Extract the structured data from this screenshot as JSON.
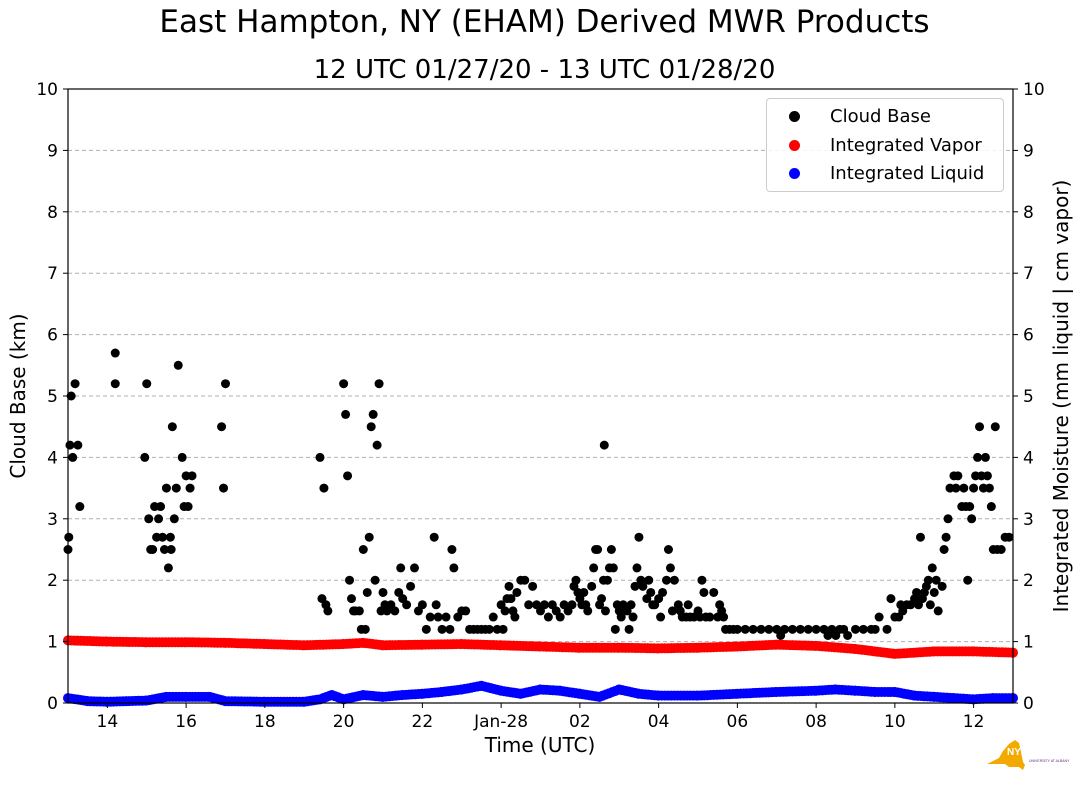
{
  "title": "East Hampton, NY (EHAM) Derived MWR Products",
  "subtitle": "12 UTC 01/27/20 - 13 UTC 01/28/20",
  "colors": {
    "cloud_base": "#000000",
    "vapor": "#ff0000",
    "liquid": "#0000ff",
    "grid": "#b0b0b0",
    "logo_state": "#f2a900",
    "logo_text": "#5b2d83"
  },
  "legend": [
    {
      "label": "Cloud Base",
      "color": "#000000"
    },
    {
      "label": "Integrated Vapor",
      "color": "#ff0000"
    },
    {
      "label": "Integrated Liquid",
      "color": "#0000ff"
    }
  ],
  "logo": {
    "name": "NYS Mesonet",
    "text": "NYS Mesonet"
  },
  "chart_data": {
    "type": "scatter",
    "title": "East Hampton, NY (EHAM) Derived MWR Products",
    "subtitle": "12 UTC 01/27/20 - 13 UTC 01/28/20",
    "xlabel": "Time (UTC)",
    "ylabel_left": "Cloud Base (km)",
    "ylabel_right": "Integrated Moisture (mm liquid | cm vapor)",
    "x_unit": "hours since 12 UTC 01/27/20",
    "xlim": [
      1,
      25
    ],
    "ylim": [
      0,
      10
    ],
    "yticks": [
      0,
      1,
      2,
      3,
      4,
      5,
      6,
      7,
      8,
      9,
      10
    ],
    "xticks": [
      {
        "x": 2,
        "label": "14"
      },
      {
        "x": 4,
        "label": "16"
      },
      {
        "x": 6,
        "label": "18"
      },
      {
        "x": 8,
        "label": "20"
      },
      {
        "x": 10,
        "label": "22"
      },
      {
        "x": 12,
        "label": "Jan-28"
      },
      {
        "x": 14,
        "label": "02"
      },
      {
        "x": 16,
        "label": "04"
      },
      {
        "x": 18,
        "label": "06"
      },
      {
        "x": 20,
        "label": "08"
      },
      {
        "x": 22,
        "label": "10"
      },
      {
        "x": 24,
        "label": "12"
      }
    ],
    "grid": "horizontal dashed",
    "legend_position": "top-right",
    "series": [
      {
        "name": "Cloud Base",
        "color": "#000000",
        "points": [
          [
            1.0,
            2.5
          ],
          [
            1.02,
            2.7
          ],
          [
            1.05,
            4.2
          ],
          [
            1.08,
            5.0
          ],
          [
            1.12,
            4.0
          ],
          [
            1.18,
            5.2
          ],
          [
            1.25,
            4.2
          ],
          [
            1.3,
            3.2
          ],
          [
            2.2,
            5.7
          ],
          [
            2.2,
            5.2
          ],
          [
            2.95,
            4.0
          ],
          [
            3.0,
            5.2
          ],
          [
            3.05,
            3.0
          ],
          [
            3.1,
            2.5
          ],
          [
            3.15,
            2.5
          ],
          [
            3.2,
            3.2
          ],
          [
            3.25,
            2.7
          ],
          [
            3.3,
            3.0
          ],
          [
            3.35,
            3.2
          ],
          [
            3.4,
            2.7
          ],
          [
            3.45,
            2.5
          ],
          [
            3.5,
            3.5
          ],
          [
            3.55,
            2.2
          ],
          [
            3.6,
            2.7
          ],
          [
            3.62,
            2.5
          ],
          [
            3.65,
            4.5
          ],
          [
            3.7,
            3.0
          ],
          [
            3.75,
            3.5
          ],
          [
            3.8,
            5.5
          ],
          [
            3.9,
            4.0
          ],
          [
            3.95,
            3.2
          ],
          [
            4.0,
            3.7
          ],
          [
            4.05,
            3.2
          ],
          [
            4.1,
            3.5
          ],
          [
            4.15,
            3.7
          ],
          [
            4.9,
            4.5
          ],
          [
            4.95,
            3.5
          ],
          [
            5.0,
            5.2
          ],
          [
            7.4,
            4.0
          ],
          [
            7.45,
            1.7
          ],
          [
            7.5,
            3.5
          ],
          [
            7.55,
            1.6
          ],
          [
            7.6,
            1.5
          ],
          [
            8.0,
            5.2
          ],
          [
            8.05,
            4.7
          ],
          [
            8.1,
            3.7
          ],
          [
            8.15,
            2.0
          ],
          [
            8.2,
            1.7
          ],
          [
            8.25,
            1.5
          ],
          [
            8.3,
            1.5
          ],
          [
            8.4,
            1.5
          ],
          [
            8.45,
            1.2
          ],
          [
            8.5,
            2.5
          ],
          [
            8.55,
            1.2
          ],
          [
            8.6,
            1.8
          ],
          [
            8.65,
            2.7
          ],
          [
            8.7,
            4.5
          ],
          [
            8.75,
            4.7
          ],
          [
            8.8,
            2.0
          ],
          [
            8.85,
            4.2
          ],
          [
            8.9,
            5.2
          ],
          [
            8.95,
            1.5
          ],
          [
            9.0,
            1.8
          ],
          [
            9.05,
            1.6
          ],
          [
            9.1,
            1.5
          ],
          [
            9.2,
            1.6
          ],
          [
            9.3,
            1.5
          ],
          [
            9.4,
            1.8
          ],
          [
            9.45,
            2.2
          ],
          [
            9.5,
            1.7
          ],
          [
            9.6,
            1.6
          ],
          [
            9.7,
            1.9
          ],
          [
            9.8,
            2.2
          ],
          [
            9.9,
            1.5
          ],
          [
            10.0,
            1.6
          ],
          [
            10.1,
            1.2
          ],
          [
            10.2,
            1.4
          ],
          [
            10.3,
            2.7
          ],
          [
            10.35,
            1.6
          ],
          [
            10.4,
            1.4
          ],
          [
            10.5,
            1.2
          ],
          [
            10.6,
            1.4
          ],
          [
            10.7,
            1.2
          ],
          [
            10.75,
            2.5
          ],
          [
            10.8,
            2.2
          ],
          [
            10.9,
            1.4
          ],
          [
            11.0,
            1.5
          ],
          [
            11.1,
            1.5
          ],
          [
            11.2,
            1.2
          ],
          [
            11.3,
            1.2
          ],
          [
            11.4,
            1.2
          ],
          [
            11.5,
            1.2
          ],
          [
            11.6,
            1.2
          ],
          [
            11.7,
            1.2
          ],
          [
            11.8,
            1.4
          ],
          [
            11.9,
            1.2
          ],
          [
            12.0,
            1.6
          ],
          [
            12.05,
            1.2
          ],
          [
            12.1,
            1.5
          ],
          [
            12.15,
            1.7
          ],
          [
            12.2,
            1.9
          ],
          [
            12.25,
            1.7
          ],
          [
            12.3,
            1.5
          ],
          [
            12.35,
            1.4
          ],
          [
            12.4,
            1.8
          ],
          [
            12.5,
            2.0
          ],
          [
            12.6,
            2.0
          ],
          [
            12.7,
            1.6
          ],
          [
            12.8,
            1.9
          ],
          [
            12.9,
            1.6
          ],
          [
            13.0,
            1.5
          ],
          [
            13.1,
            1.6
          ],
          [
            13.2,
            1.4
          ],
          [
            13.3,
            1.6
          ],
          [
            13.4,
            1.5
          ],
          [
            13.5,
            1.4
          ],
          [
            13.6,
            1.6
          ],
          [
            13.7,
            1.5
          ],
          [
            13.8,
            1.6
          ],
          [
            13.85,
            1.9
          ],
          [
            13.9,
            2.0
          ],
          [
            13.95,
            1.8
          ],
          [
            14.0,
            1.7
          ],
          [
            14.05,
            1.6
          ],
          [
            14.1,
            1.8
          ],
          [
            14.15,
            1.6
          ],
          [
            14.2,
            1.5
          ],
          [
            14.3,
            1.9
          ],
          [
            14.35,
            2.2
          ],
          [
            14.4,
            2.5
          ],
          [
            14.45,
            2.5
          ],
          [
            14.5,
            1.6
          ],
          [
            14.55,
            1.7
          ],
          [
            14.6,
            2.0
          ],
          [
            14.62,
            4.2
          ],
          [
            14.65,
            1.5
          ],
          [
            14.7,
            2.0
          ],
          [
            14.75,
            2.2
          ],
          [
            14.8,
            2.5
          ],
          [
            14.85,
            2.2
          ],
          [
            14.9,
            1.2
          ],
          [
            14.95,
            1.6
          ],
          [
            15.0,
            1.5
          ],
          [
            15.05,
            1.4
          ],
          [
            15.1,
            1.6
          ],
          [
            15.2,
            1.5
          ],
          [
            15.25,
            1.2
          ],
          [
            15.3,
            1.6
          ],
          [
            15.35,
            1.4
          ],
          [
            15.4,
            1.9
          ],
          [
            15.45,
            2.2
          ],
          [
            15.5,
            2.7
          ],
          [
            15.55,
            2.0
          ],
          [
            15.6,
            1.9
          ],
          [
            15.7,
            1.7
          ],
          [
            15.75,
            2.0
          ],
          [
            15.8,
            1.8
          ],
          [
            15.85,
            1.6
          ],
          [
            15.9,
            1.6
          ],
          [
            16.0,
            1.7
          ],
          [
            16.05,
            1.4
          ],
          [
            16.1,
            1.8
          ],
          [
            16.2,
            2.0
          ],
          [
            16.25,
            2.5
          ],
          [
            16.3,
            2.2
          ],
          [
            16.35,
            1.5
          ],
          [
            16.4,
            2.0
          ],
          [
            16.5,
            1.6
          ],
          [
            16.55,
            1.5
          ],
          [
            16.6,
            1.4
          ],
          [
            16.7,
            1.4
          ],
          [
            16.75,
            1.6
          ],
          [
            16.8,
            1.4
          ],
          [
            16.9,
            1.4
          ],
          [
            17.0,
            1.5
          ],
          [
            17.05,
            1.4
          ],
          [
            17.1,
            2.0
          ],
          [
            17.15,
            1.8
          ],
          [
            17.2,
            1.4
          ],
          [
            17.3,
            1.4
          ],
          [
            17.4,
            1.8
          ],
          [
            17.5,
            1.4
          ],
          [
            17.55,
            1.6
          ],
          [
            17.6,
            1.5
          ],
          [
            17.65,
            1.4
          ],
          [
            17.7,
            1.2
          ],
          [
            17.8,
            1.2
          ],
          [
            17.9,
            1.2
          ],
          [
            18.0,
            1.2
          ],
          [
            18.2,
            1.2
          ],
          [
            18.4,
            1.2
          ],
          [
            18.6,
            1.2
          ],
          [
            18.8,
            1.2
          ],
          [
            19.0,
            1.2
          ],
          [
            19.1,
            1.1
          ],
          [
            19.2,
            1.2
          ],
          [
            19.4,
            1.2
          ],
          [
            19.6,
            1.2
          ],
          [
            19.8,
            1.2
          ],
          [
            20.0,
            1.2
          ],
          [
            20.2,
            1.2
          ],
          [
            20.3,
            1.1
          ],
          [
            20.4,
            1.2
          ],
          [
            20.5,
            1.1
          ],
          [
            20.6,
            1.2
          ],
          [
            20.7,
            1.2
          ],
          [
            20.8,
            1.1
          ],
          [
            21.0,
            1.2
          ],
          [
            21.2,
            1.2
          ],
          [
            21.4,
            1.2
          ],
          [
            21.5,
            1.2
          ],
          [
            21.6,
            1.4
          ],
          [
            21.8,
            1.2
          ],
          [
            21.9,
            1.7
          ],
          [
            22.0,
            1.4
          ],
          [
            22.1,
            1.4
          ],
          [
            22.15,
            1.6
          ],
          [
            22.2,
            1.5
          ],
          [
            22.3,
            1.6
          ],
          [
            22.4,
            1.6
          ],
          [
            22.5,
            1.7
          ],
          [
            22.55,
            1.8
          ],
          [
            22.6,
            1.6
          ],
          [
            22.65,
            2.7
          ],
          [
            22.7,
            1.7
          ],
          [
            22.75,
            1.8
          ],
          [
            22.8,
            1.9
          ],
          [
            22.85,
            2.0
          ],
          [
            22.9,
            1.6
          ],
          [
            22.95,
            2.2
          ],
          [
            23.0,
            1.8
          ],
          [
            23.05,
            2.0
          ],
          [
            23.1,
            1.5
          ],
          [
            23.2,
            1.9
          ],
          [
            23.25,
            2.5
          ],
          [
            23.3,
            2.7
          ],
          [
            23.35,
            3.0
          ],
          [
            23.4,
            3.5
          ],
          [
            23.5,
            3.7
          ],
          [
            23.55,
            3.5
          ],
          [
            23.6,
            3.7
          ],
          [
            23.7,
            3.2
          ],
          [
            23.75,
            3.5
          ],
          [
            23.8,
            3.2
          ],
          [
            23.85,
            2.0
          ],
          [
            23.9,
            3.2
          ],
          [
            23.95,
            3.0
          ],
          [
            24.0,
            3.5
          ],
          [
            24.05,
            3.7
          ],
          [
            24.1,
            4.0
          ],
          [
            24.15,
            4.5
          ],
          [
            24.2,
            3.7
          ],
          [
            24.25,
            3.5
          ],
          [
            24.3,
            4.0
          ],
          [
            24.35,
            3.7
          ],
          [
            24.4,
            3.5
          ],
          [
            24.45,
            3.2
          ],
          [
            24.5,
            2.5
          ],
          [
            24.55,
            4.5
          ],
          [
            24.6,
            2.5
          ],
          [
            24.7,
            2.5
          ],
          [
            24.8,
            2.7
          ],
          [
            24.9,
            2.7
          ]
        ]
      },
      {
        "name": "Integrated Vapor",
        "color": "#ff0000",
        "x": [
          1,
          2,
          3,
          4,
          5,
          6,
          7,
          8,
          8.5,
          9,
          10,
          11,
          12,
          13,
          14,
          15,
          16,
          17,
          18,
          19,
          20,
          21,
          22,
          23,
          24,
          25
        ],
        "values": [
          1.02,
          1.0,
          0.99,
          0.99,
          0.98,
          0.96,
          0.94,
          0.96,
          0.98,
          0.94,
          0.95,
          0.96,
          0.94,
          0.92,
          0.9,
          0.9,
          0.89,
          0.9,
          0.92,
          0.95,
          0.93,
          0.88,
          0.8,
          0.84,
          0.84,
          0.82
        ]
      },
      {
        "name": "Integrated Liquid",
        "color": "#0000ff",
        "x": [
          1,
          1.5,
          2,
          3,
          3.5,
          4,
          4.6,
          5,
          6,
          7,
          7.4,
          7.7,
          8,
          8.5,
          9,
          9.5,
          10,
          10.5,
          11,
          11.5,
          12,
          12.5,
          13,
          13.5,
          14,
          14.5,
          15,
          15.5,
          16,
          17,
          18,
          19,
          20,
          20.5,
          21,
          21.5,
          22,
          22.5,
          23,
          23.5,
          24,
          24.5,
          25
        ],
        "values": [
          0.08,
          0.03,
          0.02,
          0.04,
          0.1,
          0.1,
          0.1,
          0.03,
          0.02,
          0.02,
          0.06,
          0.13,
          0.06,
          0.13,
          0.1,
          0.13,
          0.15,
          0.18,
          0.22,
          0.28,
          0.2,
          0.15,
          0.22,
          0.2,
          0.15,
          0.1,
          0.22,
          0.15,
          0.12,
          0.12,
          0.15,
          0.18,
          0.2,
          0.22,
          0.2,
          0.18,
          0.18,
          0.12,
          0.1,
          0.08,
          0.06,
          0.08,
          0.08
        ]
      }
    ]
  }
}
